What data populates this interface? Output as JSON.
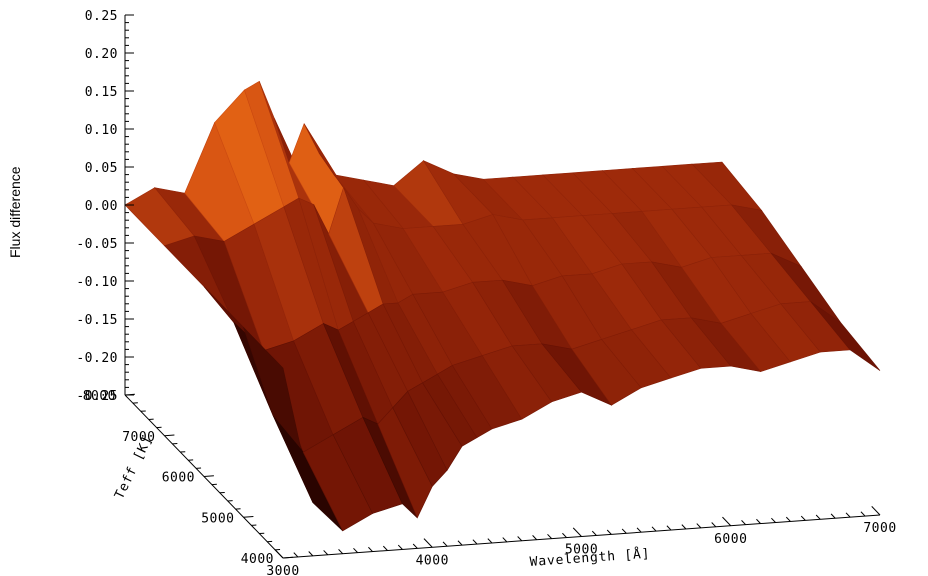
{
  "chart_data": {
    "type": "surface",
    "title": "",
    "zlabel": "Flux difference",
    "xlabel": "Wavelength [Å]",
    "ylabel": "Teff [K]",
    "zlim": [
      -0.25,
      0.25
    ],
    "xlim": [
      3000,
      7000
    ],
    "ylim": [
      4000,
      8000
    ],
    "z_ticks": [
      "0.25",
      "0.20",
      "0.15",
      "0.10",
      "0.05",
      "0.00",
      "-0.05",
      "-0.10",
      "-0.15",
      "-0.20",
      "-0.25"
    ],
    "x_ticks": [
      "3000",
      "4000",
      "5000",
      "6000",
      "7000"
    ],
    "y_ticks": [
      "4000",
      "5000",
      "6000",
      "7000",
      "8000"
    ],
    "colormap": [
      "#2a0400",
      "#6a1204",
      "#9e2a0a",
      "#d45012",
      "#ff8a1a"
    ],
    "surface": {
      "wavelength": [
        3000,
        3200,
        3400,
        3600,
        3800,
        3900,
        4000,
        4100,
        4200,
        4300,
        4400,
        4600,
        4800,
        5000,
        5200,
        5400,
        5600,
        5800,
        6000,
        6200,
        6400,
        6600,
        6800,
        7000
      ],
      "teff": [
        4000,
        5000,
        6000,
        7000,
        8000
      ],
      "flux_difference": [
        [
          0.0,
          -0.18,
          -0.22,
          -0.2,
          -0.19,
          -0.21,
          -0.17,
          -0.15,
          -0.12,
          -0.11,
          -0.1,
          -0.09,
          -0.07,
          -0.06,
          -0.08,
          -0.06,
          -0.05,
          -0.04,
          -0.04,
          -0.05,
          -0.04,
          -0.03,
          -0.03,
          -0.06
        ],
        [
          0.0,
          -0.12,
          -0.17,
          -0.15,
          -0.13,
          -0.14,
          -0.12,
          -0.1,
          -0.09,
          -0.08,
          -0.07,
          -0.06,
          -0.05,
          -0.05,
          -0.06,
          -0.05,
          -0.04,
          -0.03,
          -0.03,
          -0.04,
          -0.03,
          -0.02,
          -0.02,
          -0.05
        ],
        [
          0.0,
          -0.05,
          -0.09,
          -0.08,
          -0.06,
          -0.07,
          -0.06,
          -0.05,
          -0.04,
          -0.04,
          -0.03,
          -0.03,
          -0.02,
          -0.02,
          -0.03,
          -0.02,
          -0.02,
          -0.01,
          -0.01,
          -0.02,
          -0.01,
          -0.01,
          -0.01,
          -0.03
        ],
        [
          0.0,
          0.01,
          0.0,
          0.02,
          0.04,
          0.05,
          0.04,
          0.0,
          0.06,
          0.03,
          0.01,
          0.0,
          0.0,
          0.0,
          0.01,
          0.0,
          0.0,
          0.0,
          0.0,
          0.0,
          0.0,
          0.0,
          0.0,
          -0.01
        ],
        [
          0.0,
          0.02,
          0.01,
          0.1,
          0.14,
          0.15,
          0.1,
          0.04,
          0.09,
          0.05,
          0.02,
          0.01,
          0.0,
          0.03,
          0.01,
          0.0,
          0.0,
          0.0,
          0.0,
          0.0,
          0.0,
          0.0,
          0.0,
          0.0
        ]
      ]
    }
  }
}
